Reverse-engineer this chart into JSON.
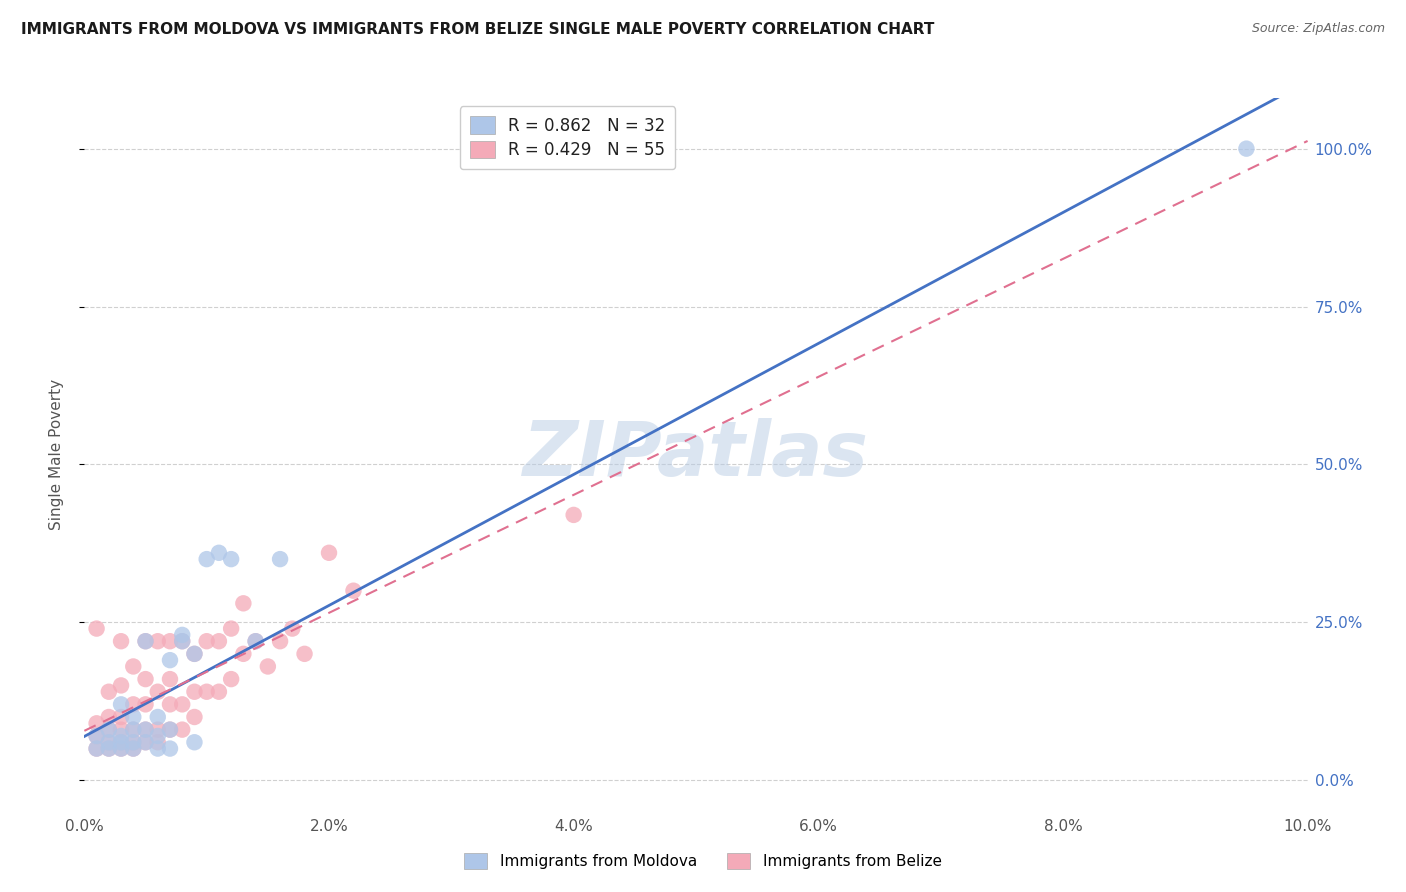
{
  "title": "IMMIGRANTS FROM MOLDOVA VS IMMIGRANTS FROM BELIZE SINGLE MALE POVERTY CORRELATION CHART",
  "source": "Source: ZipAtlas.com",
  "ylabel": "Single Male Poverty",
  "xlim": [
    0.0,
    0.1
  ],
  "ylim": [
    -0.05,
    1.08
  ],
  "moldova_R": 0.862,
  "moldova_N": 32,
  "belize_R": 0.429,
  "belize_N": 55,
  "moldova_color": "#aec6e8",
  "belize_color": "#f4aab8",
  "moldova_line_color": "#4472c4",
  "belize_line_color": "#e07090",
  "watermark": "ZIPatlas",
  "moldova_x": [
    0.001,
    0.001,
    0.002,
    0.002,
    0.002,
    0.003,
    0.003,
    0.003,
    0.003,
    0.004,
    0.004,
    0.004,
    0.004,
    0.005,
    0.005,
    0.005,
    0.006,
    0.006,
    0.006,
    0.007,
    0.007,
    0.007,
    0.008,
    0.008,
    0.009,
    0.009,
    0.01,
    0.011,
    0.012,
    0.014,
    0.016,
    0.095
  ],
  "moldova_y": [
    0.05,
    0.07,
    0.05,
    0.06,
    0.08,
    0.05,
    0.06,
    0.07,
    0.12,
    0.05,
    0.06,
    0.08,
    0.1,
    0.06,
    0.08,
    0.22,
    0.05,
    0.07,
    0.1,
    0.05,
    0.08,
    0.19,
    0.22,
    0.23,
    0.06,
    0.2,
    0.35,
    0.36,
    0.35,
    0.22,
    0.35,
    1.0
  ],
  "belize_x": [
    0.001,
    0.001,
    0.001,
    0.001,
    0.002,
    0.002,
    0.002,
    0.002,
    0.002,
    0.003,
    0.003,
    0.003,
    0.003,
    0.003,
    0.003,
    0.004,
    0.004,
    0.004,
    0.004,
    0.004,
    0.005,
    0.005,
    0.005,
    0.005,
    0.005,
    0.006,
    0.006,
    0.006,
    0.006,
    0.007,
    0.007,
    0.007,
    0.007,
    0.008,
    0.008,
    0.008,
    0.009,
    0.009,
    0.009,
    0.01,
    0.01,
    0.011,
    0.011,
    0.012,
    0.012,
    0.013,
    0.013,
    0.014,
    0.015,
    0.016,
    0.017,
    0.018,
    0.02,
    0.022,
    0.04
  ],
  "belize_y": [
    0.05,
    0.07,
    0.09,
    0.24,
    0.05,
    0.06,
    0.08,
    0.1,
    0.14,
    0.05,
    0.06,
    0.08,
    0.1,
    0.15,
    0.22,
    0.05,
    0.06,
    0.08,
    0.12,
    0.18,
    0.06,
    0.08,
    0.12,
    0.16,
    0.22,
    0.06,
    0.08,
    0.14,
    0.22,
    0.08,
    0.12,
    0.16,
    0.22,
    0.08,
    0.12,
    0.22,
    0.1,
    0.14,
    0.2,
    0.14,
    0.22,
    0.14,
    0.22,
    0.16,
    0.24,
    0.2,
    0.28,
    0.22,
    0.18,
    0.22,
    0.24,
    0.2,
    0.36,
    0.3,
    0.42
  ],
  "ytick_values": [
    0.0,
    0.25,
    0.5,
    0.75,
    1.0
  ],
  "xtick_values": [
    0.0,
    0.02,
    0.04,
    0.06,
    0.08,
    0.1
  ],
  "grid_color": "#d0d0d0",
  "bg_color": "#ffffff",
  "right_tick_color": "#4472c4"
}
